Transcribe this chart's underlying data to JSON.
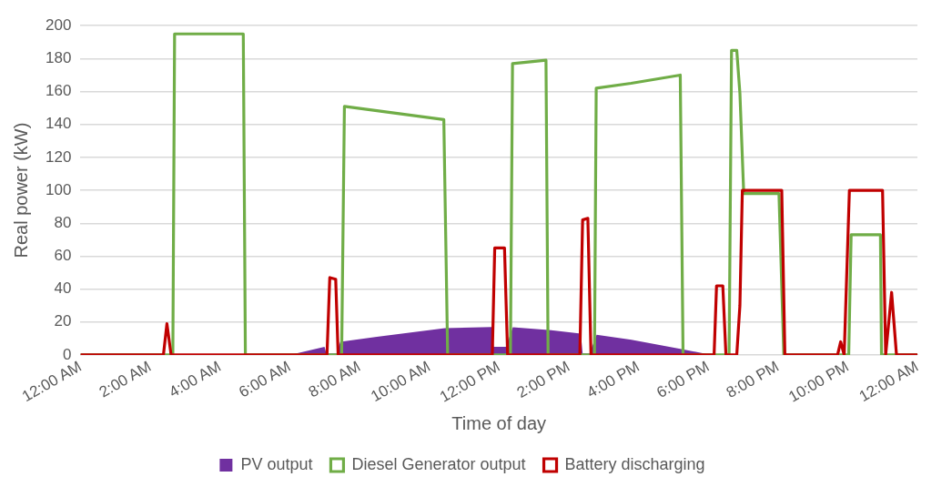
{
  "chart_data": {
    "type": "line",
    "xlabel": "Time of day",
    "ylabel": "Real power (kW)",
    "xlim": [
      0,
      24
    ],
    "xticks": [
      {
        "value": 0,
        "label": "12:00 AM"
      },
      {
        "value": 2,
        "label": "2:00 AM"
      },
      {
        "value": 4,
        "label": "4:00 AM"
      },
      {
        "value": 6,
        "label": "6:00 AM"
      },
      {
        "value": 8,
        "label": "8:00 AM"
      },
      {
        "value": 10,
        "label": "10:00 AM"
      },
      {
        "value": 12,
        "label": "12:00 PM"
      },
      {
        "value": 14,
        "label": "2:00 PM"
      },
      {
        "value": 16,
        "label": "4:00 PM"
      },
      {
        "value": 18,
        "label": "6:00 PM"
      },
      {
        "value": 20,
        "label": "8:00 PM"
      },
      {
        "value": 22,
        "label": "10:00 PM"
      },
      {
        "value": 24,
        "label": "12:00 AM"
      }
    ],
    "ylim": [
      0,
      200
    ],
    "yticks": [
      0,
      20,
      40,
      60,
      80,
      100,
      120,
      140,
      160,
      180,
      200
    ],
    "grid": "y",
    "legend": "bottom",
    "marker": "none",
    "series": [
      {
        "name": "PV output",
        "type": "area",
        "color": "#7030a0",
        "x": [
          0,
          6,
          7,
          7.05,
          7.35,
          7.45,
          8.5,
          10.45,
          11.8,
          11.85,
          12.2,
          12.4,
          13.5,
          14.35,
          14.4,
          14.6,
          14.8,
          15.8,
          17.2,
          18.1,
          24
        ],
        "values": [
          0,
          0,
          5,
          1,
          1,
          8,
          11,
          16.3,
          17,
          5,
          5,
          16.9,
          15,
          13,
          1,
          1,
          12.3,
          9.2,
          3.7,
          0,
          0
        ]
      },
      {
        "name": "Diesel Generator output",
        "type": "line",
        "color": "#70ad47",
        "x": [
          0,
          2.65,
          2.7,
          4.67,
          4.73,
          7.49,
          7.57,
          10.42,
          10.53,
          12.33,
          12.39,
          13.35,
          13.41,
          14.74,
          14.79,
          15.79,
          17.2,
          17.28,
          18.6,
          18.67,
          18.82,
          18.91,
          19.02,
          20.03,
          20.17,
          22.03,
          22.1,
          22.94,
          22.97,
          24
        ],
        "values": [
          0,
          0,
          195,
          195,
          0,
          0,
          151,
          143,
          0,
          0,
          177,
          179,
          0,
          0,
          162,
          165,
          170,
          0,
          0,
          185,
          185,
          159,
          98,
          98,
          0,
          0,
          73,
          73,
          0,
          0
        ]
      },
      {
        "name": "Battery discharging",
        "type": "line",
        "color": "#c00000",
        "x": [
          0,
          2.38,
          2.48,
          2.6,
          7.07,
          7.15,
          7.32,
          7.39,
          11.81,
          11.88,
          12.16,
          12.25,
          14.32,
          14.4,
          14.55,
          14.64,
          18.17,
          18.24,
          18.42,
          18.51,
          18.82,
          18.91,
          18.98,
          20.11,
          20.2,
          21.71,
          21.8,
          21.9,
          22.05,
          23.0,
          23.09,
          23.26,
          23.4,
          24
        ],
        "values": [
          0,
          0,
          19,
          0,
          0,
          47,
          46,
          0,
          0,
          65,
          65,
          0,
          0,
          82,
          83,
          0,
          0,
          42,
          42,
          0,
          0,
          30,
          100,
          100,
          0,
          0,
          8,
          0,
          100,
          100,
          0,
          38,
          0,
          0
        ]
      }
    ]
  }
}
